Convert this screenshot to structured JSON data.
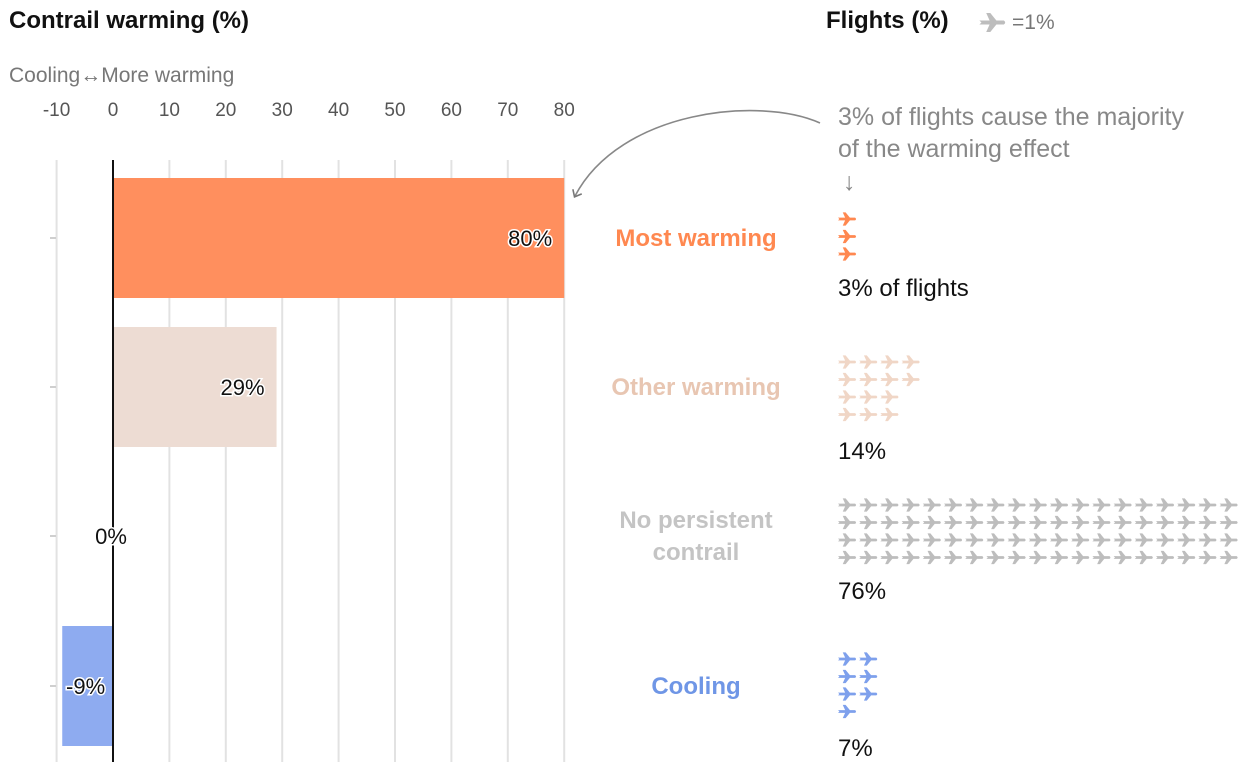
{
  "chart_data": {
    "type": "bar",
    "orientation": "horizontal",
    "title": "Contrail warming (%)",
    "axis_caption": "Cooling↔More warming",
    "xlim": [
      -10,
      80
    ],
    "xticks": [
      -10,
      0,
      10,
      20,
      30,
      40,
      50,
      60,
      70,
      80
    ],
    "grid": true,
    "categories": [
      "Most warming",
      "Other warming",
      "No persistent contrail",
      "Cooling"
    ],
    "values": [
      80,
      29,
      0,
      -9
    ],
    "value_labels": [
      "80%",
      "29%",
      "0%",
      "-9%"
    ],
    "colors": [
      "#ff8f5e",
      "#eddcd3",
      "#c4c4c4",
      "#8eabf0"
    ],
    "category_label_lines": [
      [
        "Most warming"
      ],
      [
        "Other warming"
      ],
      [
        "No persistent",
        "contrail"
      ],
      [
        "Cooling"
      ]
    ],
    "label_colors": [
      "#ff8850",
      "#e8c6b2",
      "#c4c4c4",
      "#6f96e6"
    ]
  },
  "flights": {
    "title": "Flights (%)",
    "legend_icon": "plane-icon",
    "legend_text": "=1%",
    "values": [
      3,
      14,
      76,
      7
    ],
    "labels": [
      "3% of flights",
      "14%",
      "76%",
      "7%"
    ],
    "icon_colors": [
      "#ff8850",
      "#f0d6c6",
      "#bdbdbd",
      "#7ea0ec"
    ],
    "legend_icon_color": "#bdbdbd"
  },
  "annotation": {
    "lines": [
      "3% of flights cause the majority",
      "of the warming effect"
    ],
    "arrow": "↓"
  }
}
